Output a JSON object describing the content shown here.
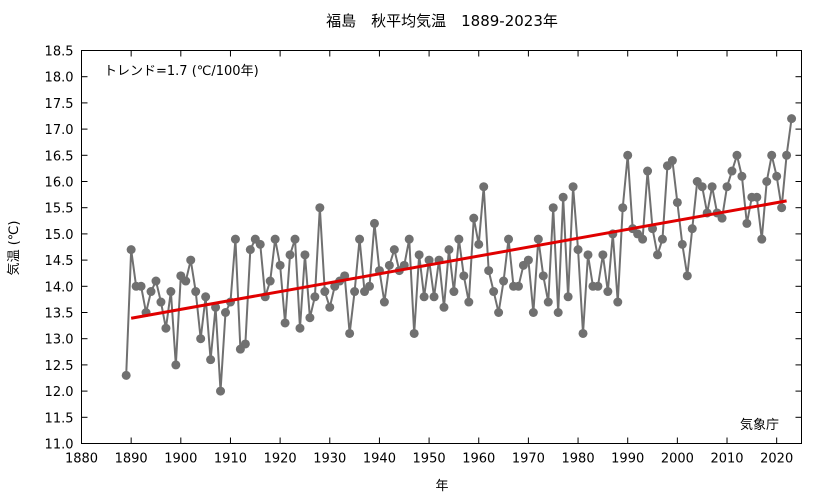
{
  "chart_data": {
    "type": "line",
    "title": "福島　秋平均気温　1889-2023年",
    "xlabel": "年",
    "ylabel": "気温 (℃)",
    "xlim": [
      1880,
      2025
    ],
    "ylim": [
      11.0,
      18.5
    ],
    "x_ticks": [
      "1880",
      "1890",
      "1900",
      "1910",
      "1920",
      "1930",
      "1940",
      "1950",
      "1960",
      "1970",
      "1980",
      "1990",
      "2000",
      "2010",
      "2020"
    ],
    "y_ticks": [
      "11.0",
      "11.5",
      "12.0",
      "12.5",
      "13.0",
      "13.5",
      "14.0",
      "14.5",
      "15.0",
      "15.5",
      "16.0",
      "16.5",
      "17.0",
      "17.5",
      "18.0",
      "18.5"
    ],
    "grid": false,
    "trend_label": "トレンド=1.7 (℃/100年)",
    "source_label": "気象庁",
    "colors": {
      "series": "#707070",
      "trend": "#e00000",
      "axis": "#000000"
    },
    "series": [
      {
        "x": [
          1889,
          1890,
          1891,
          1892,
          1893,
          1894,
          1895,
          1896,
          1897,
          1898,
          1899,
          1900,
          1901,
          1902,
          1903,
          1904,
          1905,
          1906,
          1907,
          1908,
          1909,
          1910,
          1911,
          1912,
          1913,
          1914,
          1915,
          1916,
          1917,
          1918,
          1919,
          1920,
          1921,
          1922,
          1923,
          1924,
          1925,
          1926,
          1927,
          1928,
          1929,
          1930,
          1931,
          1932,
          1933,
          1934,
          1935,
          1936,
          1937,
          1938,
          1939,
          1940,
          1941,
          1942,
          1943,
          1944,
          1945,
          1946,
          1947,
          1948,
          1949,
          1950,
          1951,
          1952,
          1953,
          1954,
          1955,
          1956,
          1957,
          1958,
          1959,
          1960,
          1961,
          1962,
          1963,
          1964,
          1965,
          1966,
          1967,
          1968,
          1969,
          1970,
          1971,
          1972,
          1973,
          1974,
          1975,
          1976,
          1977,
          1978,
          1979,
          1980,
          1981,
          1982,
          1983,
          1984,
          1985,
          1986,
          1987,
          1988,
          1989,
          1990,
          1991,
          1992,
          1993,
          1994,
          1995,
          1996,
          1997,
          1998,
          1999,
          2000,
          2001,
          2002,
          2003,
          2004,
          2005,
          2006,
          2007,
          2008,
          2009,
          2010,
          2011,
          2012,
          2013,
          2014,
          2015,
          2016,
          2017,
          2018,
          2019,
          2020,
          2021,
          2022,
          2023
        ],
        "values": [
          12.3,
          14.7,
          14.0,
          14.0,
          13.5,
          13.9,
          14.1,
          13.7,
          13.2,
          13.9,
          12.5,
          14.2,
          14.1,
          14.5,
          13.9,
          13.0,
          13.8,
          12.6,
          13.6,
          12.0,
          13.5,
          13.7,
          14.9,
          12.8,
          12.9,
          14.7,
          14.9,
          14.8,
          13.8,
          14.1,
          14.9,
          14.4,
          13.3,
          14.6,
          14.9,
          13.2,
          14.6,
          13.4,
          13.8,
          15.5,
          13.9,
          13.6,
          14.0,
          14.1,
          14.2,
          13.1,
          13.9,
          14.9,
          13.9,
          14.0,
          15.2,
          14.3,
          13.7,
          14.4,
          14.7,
          14.3,
          14.4,
          14.9,
          13.1,
          14.6,
          13.8,
          14.5,
          13.8,
          14.5,
          13.6,
          14.7,
          13.9,
          14.9,
          14.2,
          13.7,
          15.3,
          14.8,
          15.9,
          14.3,
          13.9,
          13.5,
          14.1,
          14.9,
          14.0,
          14.0,
          14.4,
          14.5,
          13.5,
          14.9,
          14.2,
          13.7,
          15.5,
          13.5,
          15.7,
          13.8,
          15.9,
          14.7,
          13.1,
          14.6,
          14.0,
          14.0,
          14.6,
          13.9,
          15.0,
          13.7,
          15.5,
          16.5,
          15.1,
          15.0,
          14.9,
          16.2,
          15.1,
          14.6,
          14.9,
          16.3,
          16.4,
          15.6,
          14.8,
          14.2,
          15.1,
          16.0,
          15.9,
          15.4,
          15.9,
          15.4,
          15.3,
          15.9,
          16.2,
          16.5,
          16.1,
          15.2,
          15.7,
          15.7,
          14.9,
          16.0,
          16.5,
          16.1,
          15.5,
          16.5,
          17.2
        ]
      }
    ],
    "trend": {
      "x": [
        1890,
        2022
      ],
      "y": [
        13.39,
        15.63
      ]
    }
  }
}
